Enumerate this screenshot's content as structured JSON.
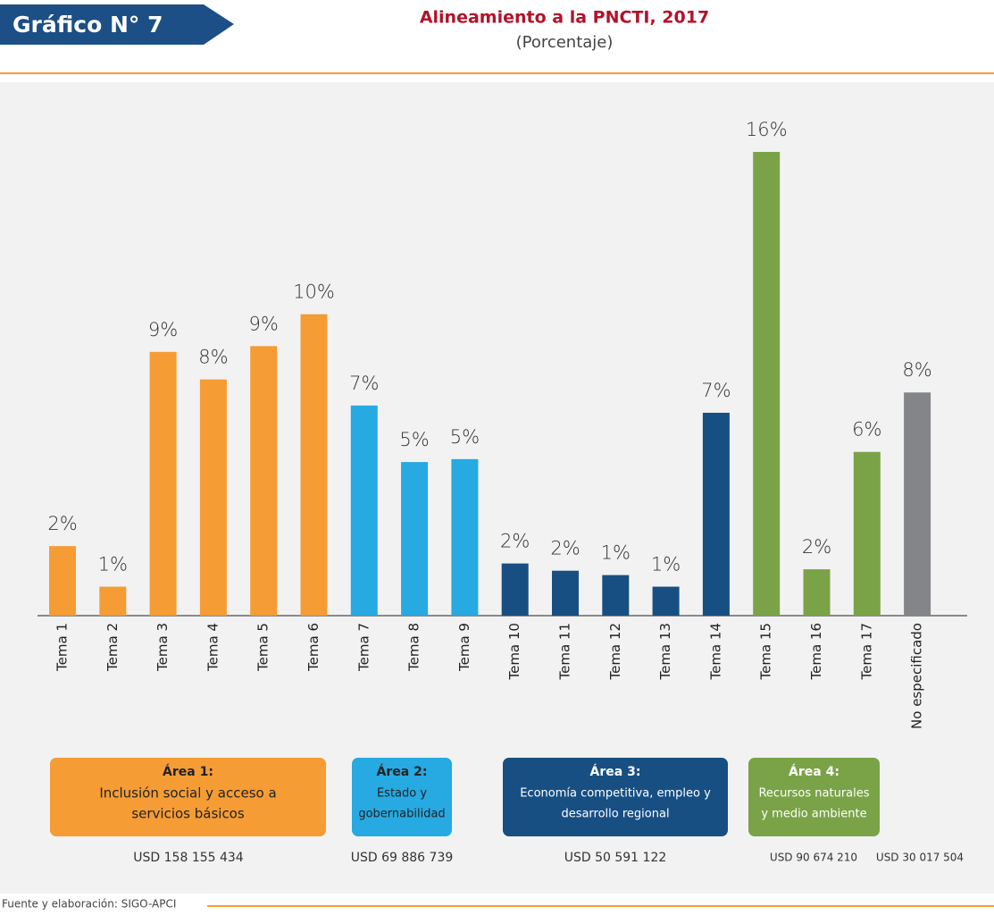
{
  "chart_data": {
    "type": "bar",
    "badge": "Gráfico N° 7",
    "title": "Alineamiento a la PNCTI, 2017",
    "subtitle": "(Porcentaje)",
    "categories": [
      "Tema 1",
      "Tema 2",
      "Tema 3",
      "Tema 4",
      "Tema 5",
      "Tema 6",
      "Tema 7",
      "Tema 8",
      "Tema 9",
      "Tema 10",
      "Tema 11",
      "Tema 12",
      "Tema 13",
      "Tema 14",
      "Tema 15",
      "Tema 16",
      "Tema 17",
      "No especificado"
    ],
    "values": [
      2.4,
      1.0,
      9.1,
      8.15,
      9.3,
      10.4,
      7.25,
      5.3,
      5.4,
      1.8,
      1.55,
      1.4,
      1.0,
      7.0,
      16,
      1.6,
      5.65,
      7.7
    ],
    "value_labels": [
      "2%",
      "1%",
      "9%",
      "8%",
      "9%",
      "10%",
      "7%",
      "5%",
      "5%",
      "2%",
      "2%",
      "1%",
      "1%",
      "7%",
      "16%",
      "2%",
      "6%",
      "8%"
    ],
    "colors": [
      "#f59c34",
      "#f59c34",
      "#f59c34",
      "#f59c34",
      "#f59c34",
      "#f59c34",
      "#27a9e1",
      "#27a9e1",
      "#27a9e1",
      "#174f83",
      "#174f83",
      "#174f83",
      "#174f83",
      "#174f83",
      "#7aa348",
      "#7aa348",
      "#7aa348",
      "#848589"
    ],
    "areas": [
      {
        "title": "Área 1:",
        "lines": [
          "Inclusión social y acceso a",
          "servicios básicos"
        ],
        "color": "#f59c34"
      },
      {
        "title": "Área 2:",
        "lines": [
          "Estado y",
          "gobernabilidad"
        ],
        "color": "#27a9e1"
      },
      {
        "title": "Área 3:",
        "lines": [
          "Economía competitiva, empleo y",
          "desarrollo regional"
        ],
        "color": "#174f83"
      },
      {
        "title": "Área 4:",
        "lines": [
          "Recursos naturales",
          "y medio ambiente"
        ],
        "color": "#7aa348"
      }
    ],
    "amounts": [
      "USD 158 155 434",
      "USD 69 886 739",
      "USD 50 591 122",
      "USD 90 674 210",
      "USD 30 017 504"
    ],
    "source": "Fuente y elaboración: SIGO-APCI"
  }
}
